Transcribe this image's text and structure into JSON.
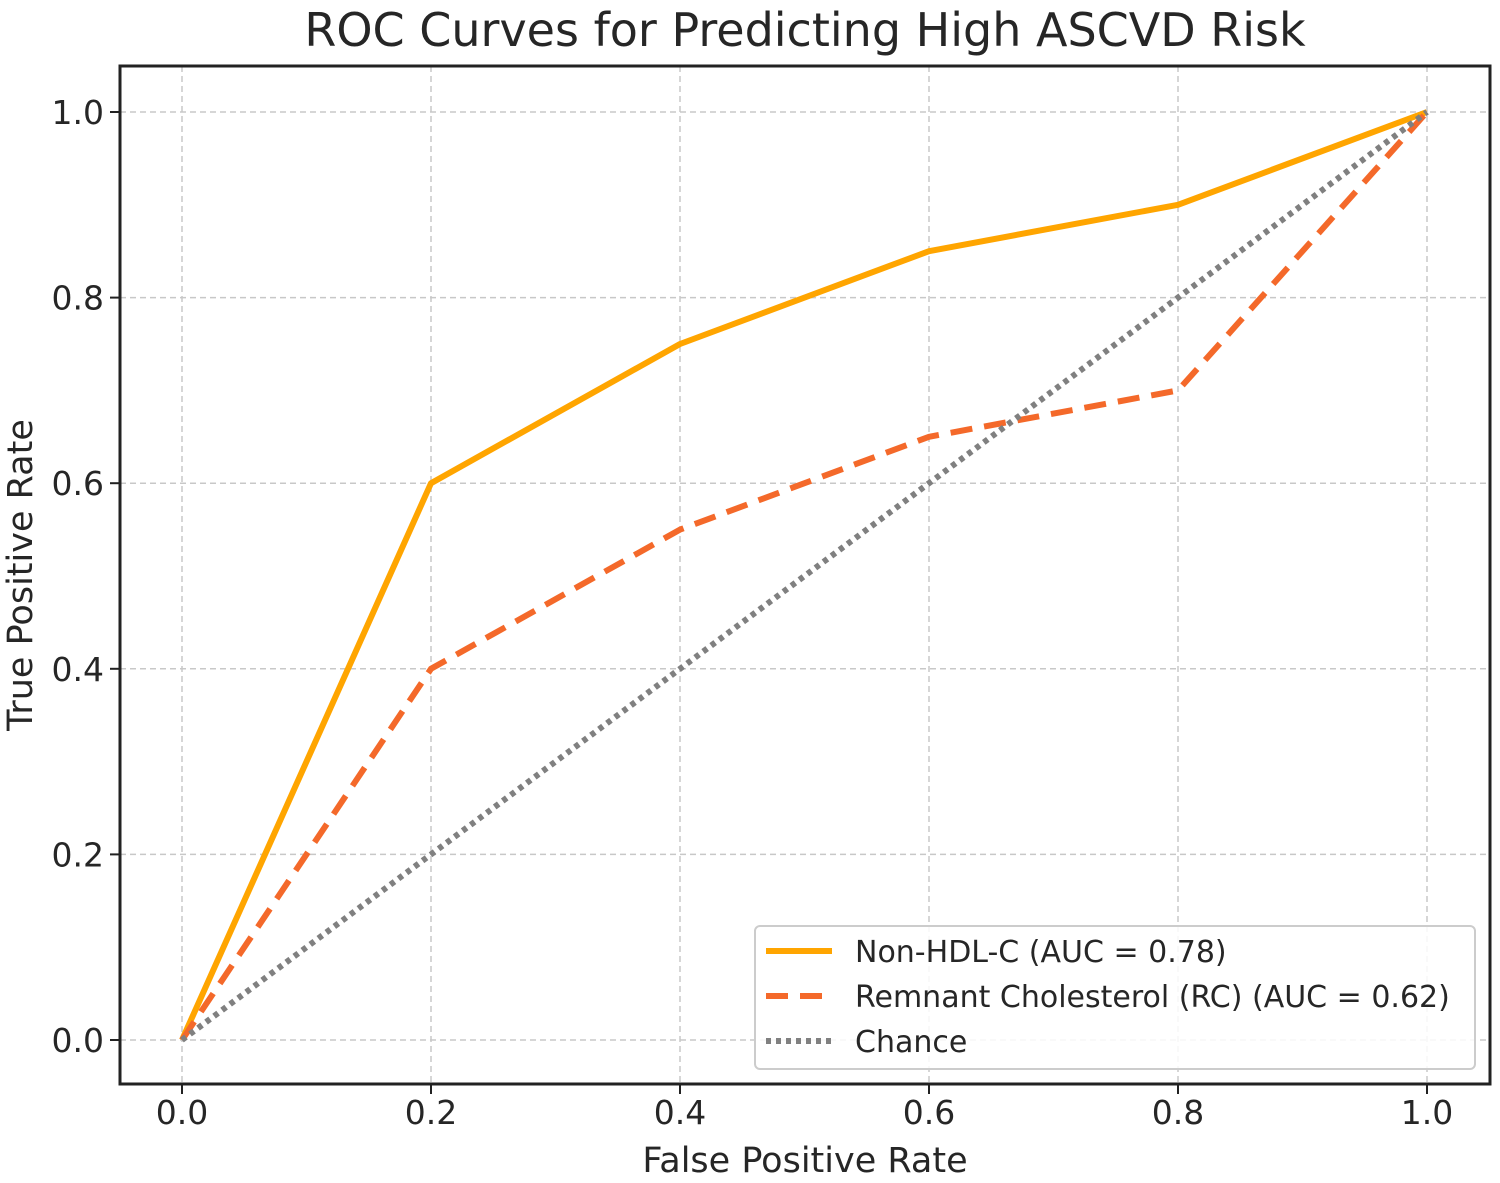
{
  "chart_data": {
    "type": "line",
    "title": "ROC Curves for Predicting High ASCVD Risk",
    "xlabel": "False Positive Rate",
    "ylabel": "True Positive Rate",
    "xlim": [
      -0.05,
      1.05
    ],
    "ylim": [
      -0.05,
      1.05
    ],
    "xticks": [
      "0.0",
      "0.2",
      "0.4",
      "0.6",
      "0.8",
      "1.0"
    ],
    "yticks": [
      "0.0",
      "0.2",
      "0.4",
      "0.6",
      "0.8",
      "1.0"
    ],
    "grid": true,
    "legend_position": "bottom-right",
    "series": [
      {
        "name": "Non-HDL-C (AUC = 0.78)",
        "color": "#FFA500",
        "style": "solid",
        "x": [
          0,
          0.2,
          0.4,
          0.6,
          0.8,
          1.0
        ],
        "y": [
          0,
          0.6,
          0.75,
          0.85,
          0.9,
          1.0
        ]
      },
      {
        "name": "Remnant Cholesterol (RC) (AUC = 0.62)",
        "color": "#F4692A",
        "style": "dashed",
        "x": [
          0,
          0.2,
          0.4,
          0.6,
          0.8,
          1.0
        ],
        "y": [
          0,
          0.4,
          0.55,
          0.65,
          0.7,
          1.0
        ]
      },
      {
        "name": "Chance",
        "color": "#808080",
        "style": "dotted",
        "x": [
          0,
          1
        ],
        "y": [
          0,
          1
        ]
      }
    ]
  }
}
